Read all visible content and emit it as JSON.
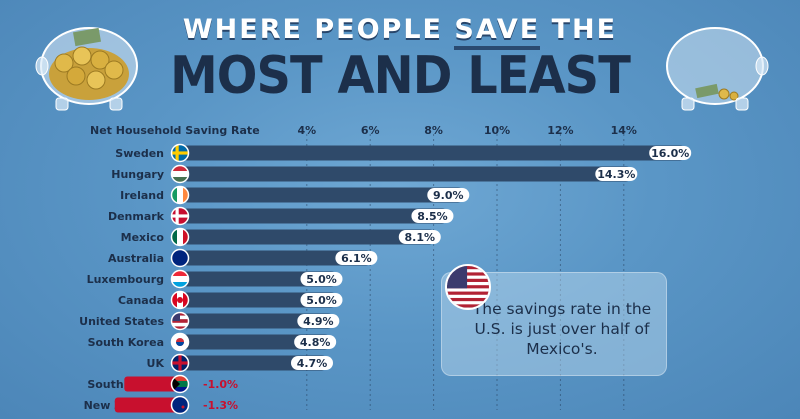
{
  "title": {
    "line1_before": "WHERE PEOPLE ",
    "line1_highlight": "SAVE",
    "line1_after": " THE",
    "line2": "MOST AND LEAST"
  },
  "colors": {
    "bar": "#2f4a6a",
    "bar_label_bg": "#ffffff",
    "label_text": "#1c2f4a",
    "negative_text": "#c8102e",
    "grid": "#1c2f4a"
  },
  "callout": {
    "text": "The savings rate in the U.S. is just over half of Mexico's.",
    "flag": "united-states"
  },
  "chart_data": {
    "type": "bar",
    "orientation": "horizontal",
    "title": "",
    "xlabel": "Net Household Saving Rate",
    "ylabel": "",
    "xlim": [
      0,
      16.5
    ],
    "grid": true,
    "ticks": [
      4,
      6,
      8,
      10,
      12,
      14
    ],
    "tick_labels": [
      "4%",
      "6%",
      "8%",
      "10%",
      "12%",
      "14%"
    ],
    "categories": [
      "Sweden",
      "Hungary",
      "Ireland",
      "Denmark",
      "Mexico",
      "Australia",
      "Luxembourg",
      "Canada",
      "United States",
      "South Korea",
      "UK",
      "South Africa",
      "New Zealand"
    ],
    "values": [
      16.0,
      14.3,
      9.0,
      8.5,
      8.1,
      6.1,
      5.0,
      5.0,
      4.9,
      4.8,
      4.7,
      -1.0,
      -1.3
    ],
    "value_labels": [
      "16.0%",
      "14.3%",
      "9.0%",
      "8.5%",
      "8.1%",
      "6.1%",
      "5.0%",
      "5.0%",
      "4.9%",
      "4.8%",
      "4.7%",
      "-1.0%",
      "-1.3%"
    ],
    "flags": [
      "sweden",
      "hungary",
      "ireland",
      "denmark",
      "mexico",
      "australia",
      "luxembourg",
      "canada",
      "united-states",
      "south-korea",
      "uk",
      "south-africa",
      "new-zealand"
    ]
  }
}
